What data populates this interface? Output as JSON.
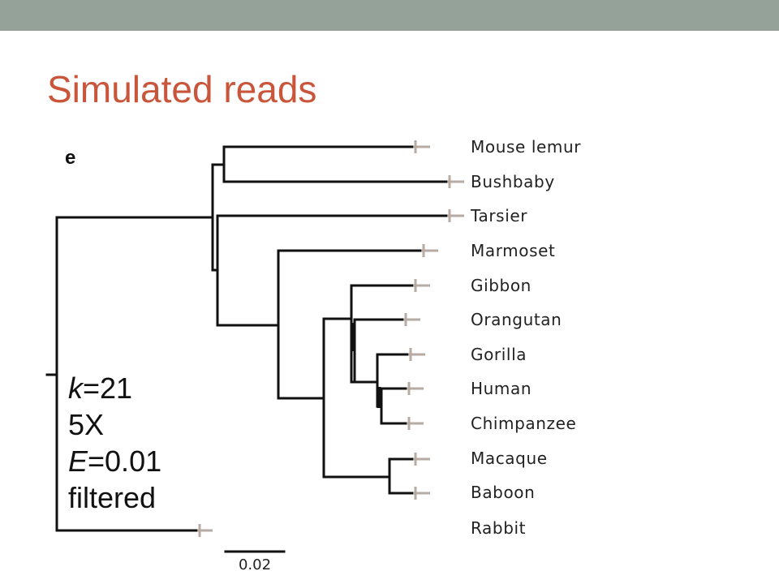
{
  "slide": {
    "title": "Simulated reads"
  },
  "figure": {
    "panel_letter": "e",
    "parameters": {
      "k_symbol": "k",
      "k_value": "=21",
      "coverage": "5X",
      "e_symbol": "E",
      "e_value": "=0.01",
      "filter": "filtered"
    },
    "scale_bar": {
      "label": "0.02",
      "length": 0.02
    },
    "taxa": [
      "Mouse lemur",
      "Bushbaby",
      "Tarsier",
      "Marmoset",
      "Gibbon",
      "Orangutan",
      "Gorilla",
      "Human",
      "Chimpanzee",
      "Macaque",
      "Baboon",
      "Rabbit"
    ],
    "colors": {
      "accent_title": "#c9553a",
      "header_bar": "#95a29a",
      "branch": "#111111",
      "tip_marker": "#b7aba3"
    }
  }
}
